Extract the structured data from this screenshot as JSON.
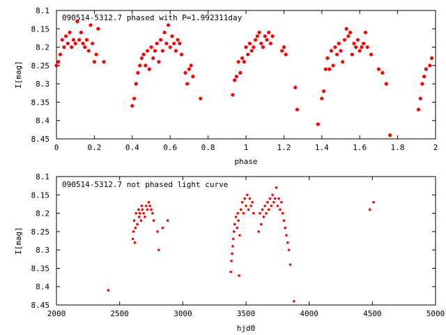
{
  "chart_data": [
    {
      "type": "scatter",
      "title": "090514-5312.7 phased with P=1.992311day",
      "xlabel": "phase",
      "ylabel": "I[mag]",
      "xlim": [
        0,
        2
      ],
      "ylim": [
        8.45,
        8.1
      ],
      "y_inverted": true,
      "grid": false,
      "marker_color": "#ff0000",
      "x_ticks": [
        0,
        0.2,
        0.4,
        0.6,
        0.8,
        1,
        1.2,
        1.4,
        1.6,
        1.8,
        2
      ],
      "x_tick_labels": [
        "0",
        "0.2",
        "0.4",
        "0.6",
        "0.8",
        "1",
        "1.2",
        "1.4",
        "1.6",
        "1.8",
        "2"
      ],
      "y_ticks": [
        8.1,
        8.15,
        8.2,
        8.25,
        8.3,
        8.35,
        8.4,
        8.45
      ],
      "y_tick_labels": [
        "8.1",
        "8.15",
        "8.2",
        "8.25",
        "8.3",
        "8.35",
        "8.4",
        "8.45"
      ],
      "points": [
        [
          0.0,
          8.25
        ],
        [
          0.01,
          8.24
        ],
        [
          0.02,
          8.22
        ],
        [
          0.03,
          8.18
        ],
        [
          0.04,
          8.2
        ],
        [
          0.05,
          8.17
        ],
        [
          0.06,
          8.19
        ],
        [
          0.07,
          8.16
        ],
        [
          0.08,
          8.2
        ],
        [
          0.09,
          8.18
        ],
        [
          0.1,
          8.19
        ],
        [
          0.11,
          8.13
        ],
        [
          0.12,
          8.18
        ],
        [
          0.13,
          8.16
        ],
        [
          0.14,
          8.19
        ],
        [
          0.15,
          8.2
        ],
        [
          0.16,
          8.18
        ],
        [
          0.17,
          8.21
        ],
        [
          0.18,
          8.14
        ],
        [
          0.19,
          8.19
        ],
        [
          0.2,
          8.24
        ],
        [
          0.21,
          8.22
        ],
        [
          0.22,
          8.15
        ],
        [
          0.25,
          8.24
        ],
        [
          0.4,
          8.36
        ],
        [
          0.41,
          8.34
        ],
        [
          0.42,
          8.3
        ],
        [
          0.43,
          8.27
        ],
        [
          0.44,
          8.25
        ],
        [
          0.45,
          8.23
        ],
        [
          0.46,
          8.22
        ],
        [
          0.47,
          8.25
        ],
        [
          0.48,
          8.21
        ],
        [
          0.49,
          8.26
        ],
        [
          0.5,
          8.2
        ],
        [
          0.51,
          8.23
        ],
        [
          0.52,
          8.21
        ],
        [
          0.53,
          8.19
        ],
        [
          0.54,
          8.24
        ],
        [
          0.55,
          8.18
        ],
        [
          0.56,
          8.21
        ],
        [
          0.57,
          8.16
        ],
        [
          0.58,
          8.19
        ],
        [
          0.59,
          8.14
        ],
        [
          0.6,
          8.2
        ],
        [
          0.61,
          8.17
        ],
        [
          0.62,
          8.19
        ],
        [
          0.63,
          8.21
        ],
        [
          0.64,
          8.18
        ],
        [
          0.65,
          8.19
        ],
        [
          0.66,
          8.22
        ],
        [
          0.68,
          8.27
        ],
        [
          0.69,
          8.3
        ],
        [
          0.7,
          8.26
        ],
        [
          0.71,
          8.25
        ],
        [
          0.72,
          8.28
        ],
        [
          0.76,
          8.34
        ],
        [
          0.93,
          8.33
        ],
        [
          0.94,
          8.29
        ],
        [
          0.95,
          8.28
        ],
        [
          0.96,
          8.24
        ],
        [
          0.97,
          8.27
        ],
        [
          0.98,
          8.23
        ],
        [
          0.99,
          8.24
        ],
        [
          1.0,
          8.2
        ],
        [
          1.01,
          8.22
        ],
        [
          1.02,
          8.19
        ],
        [
          1.03,
          8.21
        ],
        [
          1.04,
          8.2
        ],
        [
          1.05,
          8.18
        ],
        [
          1.06,
          8.17
        ],
        [
          1.07,
          8.16
        ],
        [
          1.08,
          8.19
        ],
        [
          1.09,
          8.2
        ],
        [
          1.1,
          8.17
        ],
        [
          1.11,
          8.18
        ],
        [
          1.12,
          8.16
        ],
        [
          1.13,
          8.19
        ],
        [
          1.14,
          8.17
        ],
        [
          1.19,
          8.21
        ],
        [
          1.2,
          8.2
        ],
        [
          1.21,
          8.22
        ],
        [
          1.26,
          8.31
        ],
        [
          1.27,
          8.37
        ],
        [
          1.38,
          8.41
        ],
        [
          1.4,
          8.34
        ],
        [
          1.41,
          8.32
        ],
        [
          1.42,
          8.26
        ],
        [
          1.43,
          8.23
        ],
        [
          1.44,
          8.26
        ],
        [
          1.45,
          8.21
        ],
        [
          1.46,
          8.25
        ],
        [
          1.47,
          8.2
        ],
        [
          1.48,
          8.22
        ],
        [
          1.49,
          8.19
        ],
        [
          1.5,
          8.21
        ],
        [
          1.51,
          8.24
        ],
        [
          1.52,
          8.18
        ],
        [
          1.53,
          8.15
        ],
        [
          1.54,
          8.17
        ],
        [
          1.55,
          8.16
        ],
        [
          1.56,
          8.22
        ],
        [
          1.57,
          8.19
        ],
        [
          1.58,
          8.2
        ],
        [
          1.59,
          8.18
        ],
        [
          1.6,
          8.21
        ],
        [
          1.61,
          8.2
        ],
        [
          1.62,
          8.19
        ],
        [
          1.63,
          8.16
        ],
        [
          1.64,
          8.2
        ],
        [
          1.66,
          8.22
        ],
        [
          1.7,
          8.26
        ],
        [
          1.72,
          8.27
        ],
        [
          1.74,
          8.3
        ],
        [
          1.76,
          8.44
        ],
        [
          1.91,
          8.37
        ],
        [
          1.92,
          8.34
        ],
        [
          1.93,
          8.3
        ],
        [
          1.94,
          8.28
        ],
        [
          1.95,
          8.26
        ],
        [
          1.97,
          8.25
        ],
        [
          1.98,
          8.23
        ]
      ]
    },
    {
      "type": "scatter",
      "title": "090514-5312.7 not phased light curve",
      "xlabel": "hjd0",
      "ylabel": "I[mag]",
      "xlim": [
        2000,
        5000
      ],
      "ylim": [
        8.45,
        8.1
      ],
      "y_inverted": true,
      "grid": false,
      "marker_color": "#ff0000",
      "x_ticks": [
        2000,
        2500,
        3000,
        3500,
        4000,
        4500,
        5000
      ],
      "x_tick_labels": [
        "2000",
        "2500",
        "3000",
        "3500",
        "4000",
        "4500",
        "5000"
      ],
      "y_ticks": [
        8.1,
        8.15,
        8.2,
        8.25,
        8.3,
        8.35,
        8.4,
        8.45
      ],
      "y_tick_labels": [
        "8.1",
        "8.15",
        "8.2",
        "8.25",
        "8.3",
        "8.35",
        "8.4",
        "8.45"
      ],
      "points": [
        [
          2410,
          8.41
        ],
        [
          2605,
          8.27
        ],
        [
          2610,
          8.25
        ],
        [
          2615,
          8.22
        ],
        [
          2620,
          8.28
        ],
        [
          2625,
          8.24
        ],
        [
          2630,
          8.2
        ],
        [
          2640,
          8.23
        ],
        [
          2650,
          8.19
        ],
        [
          2655,
          8.21
        ],
        [
          2660,
          8.2
        ],
        [
          2670,
          8.22
        ],
        [
          2675,
          8.18
        ],
        [
          2680,
          8.19
        ],
        [
          2690,
          8.2
        ],
        [
          2700,
          8.21
        ],
        [
          2710,
          8.18
        ],
        [
          2720,
          8.19
        ],
        [
          2730,
          8.17
        ],
        [
          2740,
          8.18
        ],
        [
          2750,
          8.19
        ],
        [
          2760,
          8.2
        ],
        [
          2770,
          8.22
        ],
        [
          2800,
          8.25
        ],
        [
          2810,
          8.3
        ],
        [
          2840,
          8.24
        ],
        [
          2880,
          8.22
        ],
        [
          3380,
          8.36
        ],
        [
          3385,
          8.33
        ],
        [
          3390,
          8.31
        ],
        [
          3395,
          8.29
        ],
        [
          3400,
          8.27
        ],
        [
          3405,
          8.25
        ],
        [
          3410,
          8.23
        ],
        [
          3420,
          8.21
        ],
        [
          3430,
          8.24
        ],
        [
          3435,
          8.2
        ],
        [
          3440,
          8.22
        ],
        [
          3445,
          8.37
        ],
        [
          3450,
          8.26
        ],
        [
          3460,
          8.19
        ],
        [
          3470,
          8.17
        ],
        [
          3480,
          8.2
        ],
        [
          3490,
          8.16
        ],
        [
          3500,
          8.18
        ],
        [
          3510,
          8.15
        ],
        [
          3520,
          8.19
        ],
        [
          3530,
          8.16
        ],
        [
          3540,
          8.18
        ],
        [
          3550,
          8.17
        ],
        [
          3560,
          8.2
        ],
        [
          3600,
          8.25
        ],
        [
          3610,
          8.2
        ],
        [
          3620,
          8.23
        ],
        [
          3630,
          8.19
        ],
        [
          3640,
          8.21
        ],
        [
          3650,
          8.18
        ],
        [
          3660,
          8.2
        ],
        [
          3670,
          8.17
        ],
        [
          3680,
          8.19
        ],
        [
          3690,
          8.16
        ],
        [
          3700,
          8.18
        ],
        [
          3710,
          8.15
        ],
        [
          3720,
          8.17
        ],
        [
          3730,
          8.16
        ],
        [
          3740,
          8.13
        ],
        [
          3750,
          8.18
        ],
        [
          3760,
          8.16
        ],
        [
          3770,
          8.19
        ],
        [
          3780,
          8.17
        ],
        [
          3790,
          8.2
        ],
        [
          3800,
          8.22
        ],
        [
          3810,
          8.24
        ],
        [
          3820,
          8.26
        ],
        [
          3830,
          8.28
        ],
        [
          3840,
          8.3
        ],
        [
          3850,
          8.34
        ],
        [
          3880,
          8.44
        ],
        [
          4480,
          8.19
        ],
        [
          4510,
          8.17
        ]
      ]
    }
  ]
}
